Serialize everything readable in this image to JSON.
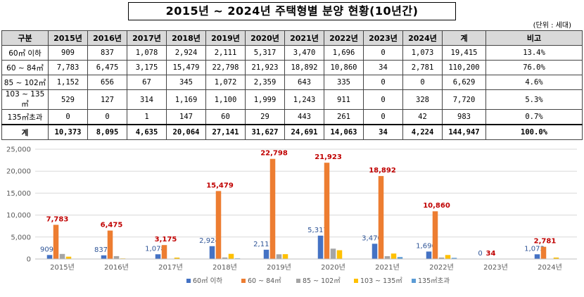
{
  "title": "2015년 ~ 2024년 주택형별 분양 현황(10년간)",
  "unit_note": "(단위 : 세대)",
  "table": {
    "headers": [
      "구분",
      "2015년",
      "2016년",
      "2017년",
      "2018년",
      "2019년",
      "2020년",
      "2021년",
      "2022년",
      "2023년",
      "2024년",
      "계",
      "비고"
    ],
    "rows": [
      [
        "60㎡ 이하",
        "909",
        "837",
        "1,078",
        "2,924",
        "2,111",
        "5,317",
        "3,470",
        "1,696",
        "0",
        "1,073",
        "19,415",
        "13.4%"
      ],
      [
        "60 ~ 84㎡",
        "7,783",
        "6,475",
        "3,175",
        "15,479",
        "22,798",
        "21,923",
        "18,892",
        "10,860",
        "34",
        "2,781",
        "110,200",
        "76.0%"
      ],
      [
        "85 ~ 102㎡",
        "1,152",
        "656",
        "67",
        "345",
        "1,072",
        "2,359",
        "643",
        "335",
        "0",
        "0",
        "6,629",
        "4.6%"
      ],
      [
        "103 ~ 135㎡",
        "529",
        "127",
        "314",
        "1,169",
        "1,100",
        "1,999",
        "1,243",
        "911",
        "0",
        "328",
        "7,720",
        "5.3%"
      ],
      [
        "135㎡초과",
        "0",
        "0",
        "1",
        "147",
        "60",
        "29",
        "443",
        "261",
        "0",
        "42",
        "983",
        "0.7%"
      ]
    ],
    "total": [
      "계",
      "10,373",
      "8,095",
      "4,635",
      "20,064",
      "27,141",
      "31,627",
      "24,691",
      "14,063",
      "34",
      "4,224",
      "144,947",
      "100.0%"
    ]
  },
  "chart_data": {
    "type": "bar",
    "categories": [
      "2015년",
      "2016년",
      "2017년",
      "2018년",
      "2019년",
      "2020년",
      "2021년",
      "2022년",
      "2023년",
      "2024년"
    ],
    "series": [
      {
        "name": "60㎡ 이하",
        "color": "#4472c4",
        "values": [
          909,
          837,
          1078,
          2924,
          2111,
          5317,
          3470,
          1696,
          0,
          1073
        ],
        "labeled": true,
        "label_color": "#2f5597"
      },
      {
        "name": "60 ~ 84㎡",
        "color": "#ed7d31",
        "values": [
          7783,
          6475,
          3175,
          15479,
          22798,
          21923,
          18892,
          10860,
          34,
          2781
        ],
        "labeled": true,
        "label_color": "#c00000"
      },
      {
        "name": "85 ~ 102㎡",
        "color": "#a5a5a5",
        "values": [
          1152,
          656,
          67,
          345,
          1072,
          2359,
          643,
          335,
          0,
          0
        ],
        "labeled": false
      },
      {
        "name": "103 ~ 135㎡",
        "color": "#ffc000",
        "values": [
          529,
          127,
          314,
          1169,
          1100,
          1999,
          1243,
          911,
          0,
          328
        ],
        "labeled": false
      },
      {
        "name": "135㎡초과",
        "color": "#5b9bd5",
        "values": [
          0,
          0,
          1,
          147,
          60,
          29,
          443,
          261,
          0,
          42
        ],
        "labeled": false
      }
    ],
    "ylim": [
      0,
      25000
    ],
    "yticks": [
      "0",
      "5,000",
      "10,000",
      "15,000",
      "20,000",
      "25,000"
    ],
    "grid": true,
    "legend_position": "bottom"
  }
}
